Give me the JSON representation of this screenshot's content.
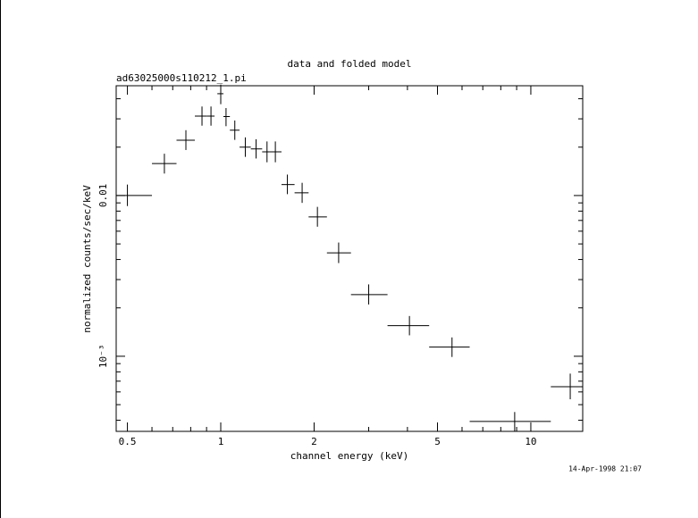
{
  "chart_data": {
    "type": "errorbar-scatter",
    "title": "data and folded model",
    "subtitle": "ad63025000s110212_1.pi",
    "x_label": "channel energy (keV)",
    "y_label": "normalized counts/sec/keV",
    "timestamp": "14-Apr-1998 21:07",
    "log_x": true,
    "log_y": true,
    "grid": false,
    "color": "#000000",
    "xlim": [
      0.46,
      14.7
    ],
    "ylim": [
      0.000341,
      0.0482
    ],
    "xticks": [
      0.5,
      1,
      2,
      5,
      10
    ],
    "yticks": [
      0.01,
      {
        "value": 0.001,
        "label": "10⁻³"
      }
    ],
    "xminorticks": [
      0.6,
      0.7,
      0.8,
      0.9,
      3,
      4,
      6,
      7,
      8,
      9
    ],
    "yminorticks": [
      0.0004,
      0.0005,
      0.0006,
      0.0007,
      0.0008,
      0.0009,
      0.002,
      0.003,
      0.004,
      0.005,
      0.006,
      0.007,
      0.008,
      0.009,
      0.02,
      0.03,
      0.04
    ],
    "x": [
      0.5,
      0.658,
      0.772,
      0.87,
      0.93,
      1.0,
      1.04,
      1.11,
      1.2,
      1.3,
      1.41,
      1.5,
      1.64,
      1.83,
      2.05,
      2.4,
      3.0,
      4.06,
      5.57,
      8.87,
      13.4
    ],
    "x_lo": [
      0.46,
      0.6,
      0.72,
      0.825,
      0.9,
      0.975,
      1.02,
      1.07,
      1.15,
      1.25,
      1.36,
      1.44,
      1.57,
      1.73,
      1.92,
      2.2,
      2.63,
      3.45,
      4.7,
      6.35,
      11.6
    ],
    "x_hi": [
      0.6,
      0.72,
      0.825,
      0.9,
      0.955,
      1.02,
      1.07,
      1.15,
      1.25,
      1.36,
      1.44,
      1.57,
      1.73,
      1.92,
      2.2,
      2.63,
      3.45,
      4.7,
      6.35,
      11.6,
      14.7
    ],
    "values": [
      0.01,
      0.0158,
      0.0221,
      0.0312,
      0.0312,
      0.043,
      0.031,
      0.0255,
      0.02,
      0.0195,
      0.0187,
      0.0187,
      0.0117,
      0.0104,
      0.00736,
      0.0044,
      0.00242,
      0.00155,
      0.00114,
      0.000393,
      0.000647
    ],
    "y_lo": [
      0.0086,
      0.0137,
      0.0192,
      0.0272,
      0.0272,
      0.037,
      0.027,
      0.0222,
      0.0174,
      0.017,
      0.0161,
      0.0161,
      0.0102,
      0.009,
      0.0064,
      0.0038,
      0.0021,
      0.00135,
      0.00099,
      0.00034,
      0.00054
    ],
    "y_hi": [
      0.0117,
      0.0182,
      0.0255,
      0.0358,
      0.0358,
      0.049,
      0.035,
      0.0293,
      0.023,
      0.0224,
      0.0217,
      0.0217,
      0.0135,
      0.012,
      0.0085,
      0.0051,
      0.0028,
      0.00178,
      0.00131,
      0.00045,
      0.00078
    ]
  }
}
